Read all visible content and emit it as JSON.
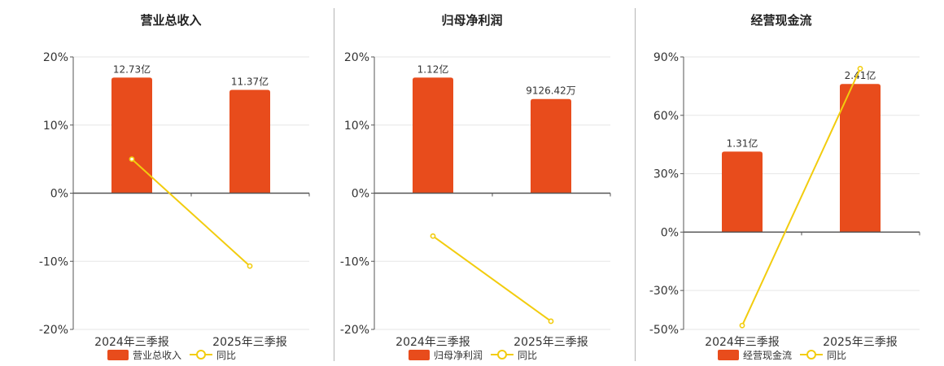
{
  "colors": {
    "bar": "#e84c1c",
    "line": "#f2cc0e",
    "axis": "#555555",
    "grid": "#e6e6e6",
    "divider": "#b5b5b5"
  },
  "chart_data": [
    {
      "type": "bar",
      "title": "营业总收入",
      "categories": [
        "2024年三季报",
        "2025年三季报"
      ],
      "series": [
        {
          "name": "营业总收入",
          "type": "bar",
          "values": [
            12.73,
            11.37
          ],
          "labels": [
            "12.73亿",
            "11.37亿"
          ]
        },
        {
          "name": "同比",
          "type": "line",
          "values": [
            5,
            -10.7
          ]
        }
      ],
      "y_ticks": [
        "20%",
        "10%",
        "0%",
        "-10%",
        "-20%"
      ],
      "ylim": [
        -20,
        20
      ],
      "bar_ylim": [
        0,
        15
      ],
      "grid": true,
      "legend": "bottom"
    },
    {
      "type": "bar",
      "title": "归母净利润",
      "categories": [
        "2024年三季报",
        "2025年三季报"
      ],
      "series": [
        {
          "name": "归母净利润",
          "type": "bar",
          "values": [
            1.12,
            0.912642
          ],
          "labels": [
            "1.12亿",
            "9126.42万"
          ]
        },
        {
          "name": "同比",
          "type": "line",
          "values": [
            -6.3,
            -18.8
          ]
        }
      ],
      "y_ticks": [
        "20%",
        "10%",
        "0%",
        "-10%",
        "-20%"
      ],
      "ylim": [
        -20,
        20
      ],
      "bar_ylim": [
        0,
        1.32
      ],
      "grid": true,
      "legend": "bottom"
    },
    {
      "type": "bar",
      "title": "经营现金流",
      "categories": [
        "2024年三季报",
        "2025年三季报"
      ],
      "series": [
        {
          "name": "经营现金流",
          "type": "bar",
          "values": [
            1.31,
            2.41
          ],
          "labels": [
            "1.31亿",
            "2.41亿"
          ]
        },
        {
          "name": "同比",
          "type": "line",
          "values": [
            -48,
            84
          ]
        }
      ],
      "y_ticks": [
        "90%",
        "60%",
        "30%",
        "0%",
        "-30%",
        "-50%"
      ],
      "ylim": [
        -50,
        90
      ],
      "bar_ylim": [
        0,
        2.85
      ],
      "grid": true,
      "legend": "bottom"
    }
  ]
}
